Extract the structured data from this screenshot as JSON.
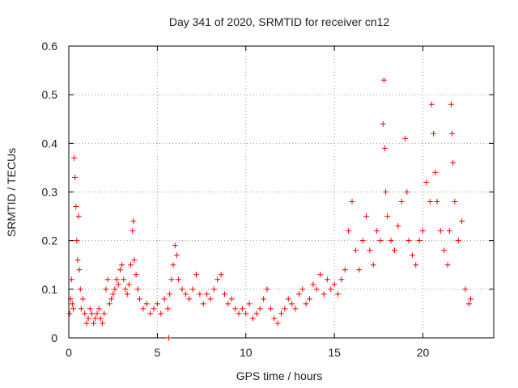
{
  "chart_data": {
    "type": "scatter",
    "title": "Day 341 of 2020, SRMTID for receiver cn12",
    "xlabel": "GPS time / hours",
    "ylabel": "SRMTID / TECUs",
    "xlim": [
      0,
      24
    ],
    "ylim": [
      0,
      0.6
    ],
    "xticks": [
      0,
      5,
      10,
      15,
      20
    ],
    "yticks": [
      0,
      0.1,
      0.2,
      0.3,
      0.4,
      0.5,
      0.6
    ],
    "ytick_labels": [
      "0",
      "0.1",
      "0.2",
      "0.3",
      "0.4",
      "0.5",
      "0.6"
    ],
    "grid": true,
    "marker": "+",
    "color": "#ff0000",
    "points": [
      [
        0.05,
        0.05
      ],
      [
        0.1,
        0.08
      ],
      [
        0.15,
        0.12
      ],
      [
        0.2,
        0.07
      ],
      [
        0.25,
        0.06
      ],
      [
        0.3,
        0.37
      ],
      [
        0.35,
        0.33
      ],
      [
        0.4,
        0.27
      ],
      [
        0.45,
        0.2
      ],
      [
        0.5,
        0.16
      ],
      [
        0.55,
        0.25
      ],
      [
        0.6,
        0.14
      ],
      [
        0.65,
        0.1
      ],
      [
        0.7,
        0.06
      ],
      [
        0.8,
        0.08
      ],
      [
        0.9,
        0.05
      ],
      [
        1.0,
        0.03
      ],
      [
        1.1,
        0.04
      ],
      [
        1.2,
        0.06
      ],
      [
        1.3,
        0.05
      ],
      [
        1.4,
        0.03
      ],
      [
        1.5,
        0.04
      ],
      [
        1.6,
        0.05
      ],
      [
        1.7,
        0.06
      ],
      [
        1.8,
        0.04
      ],
      [
        1.9,
        0.03
      ],
      [
        2.0,
        0.05
      ],
      [
        2.1,
        0.1
      ],
      [
        2.2,
        0.12
      ],
      [
        2.3,
        0.07
      ],
      [
        2.4,
        0.08
      ],
      [
        2.5,
        0.09
      ],
      [
        2.6,
        0.1
      ],
      [
        2.7,
        0.12
      ],
      [
        2.8,
        0.11
      ],
      [
        2.9,
        0.14
      ],
      [
        3.0,
        0.15
      ],
      [
        3.1,
        0.12
      ],
      [
        3.2,
        0.1
      ],
      [
        3.3,
        0.09
      ],
      [
        3.4,
        0.11
      ],
      [
        3.5,
        0.15
      ],
      [
        3.6,
        0.22
      ],
      [
        3.65,
        0.24
      ],
      [
        3.7,
        0.16
      ],
      [
        3.8,
        0.13
      ],
      [
        3.9,
        0.1
      ],
      [
        4.0,
        0.08
      ],
      [
        4.2,
        0.06
      ],
      [
        4.4,
        0.07
      ],
      [
        4.6,
        0.05
      ],
      [
        4.8,
        0.06
      ],
      [
        5.0,
        0.07
      ],
      [
        5.2,
        0.05
      ],
      [
        5.4,
        0.08
      ],
      [
        5.6,
        0.06
      ],
      [
        5.65,
        0.0
      ],
      [
        5.7,
        0.09
      ],
      [
        5.8,
        0.12
      ],
      [
        5.9,
        0.15
      ],
      [
        6.0,
        0.19
      ],
      [
        6.1,
        0.17
      ],
      [
        6.2,
        0.12
      ],
      [
        6.4,
        0.1
      ],
      [
        6.6,
        0.09
      ],
      [
        6.8,
        0.08
      ],
      [
        7.0,
        0.1
      ],
      [
        7.2,
        0.13
      ],
      [
        7.4,
        0.09
      ],
      [
        7.6,
        0.07
      ],
      [
        7.8,
        0.09
      ],
      [
        8.0,
        0.08
      ],
      [
        8.2,
        0.1
      ],
      [
        8.4,
        0.12
      ],
      [
        8.6,
        0.13
      ],
      [
        8.8,
        0.09
      ],
      [
        9.0,
        0.07
      ],
      [
        9.2,
        0.08
      ],
      [
        9.4,
        0.06
      ],
      [
        9.6,
        0.05
      ],
      [
        9.8,
        0.06
      ],
      [
        10.0,
        0.05
      ],
      [
        10.2,
        0.07
      ],
      [
        10.4,
        0.04
      ],
      [
        10.6,
        0.05
      ],
      [
        10.8,
        0.06
      ],
      [
        11.0,
        0.08
      ],
      [
        11.2,
        0.1
      ],
      [
        11.4,
        0.06
      ],
      [
        11.6,
        0.04
      ],
      [
        11.8,
        0.03
      ],
      [
        12.0,
        0.05
      ],
      [
        12.2,
        0.06
      ],
      [
        12.4,
        0.08
      ],
      [
        12.6,
        0.07
      ],
      [
        12.8,
        0.06
      ],
      [
        13.0,
        0.09
      ],
      [
        13.2,
        0.1
      ],
      [
        13.4,
        0.07
      ],
      [
        13.6,
        0.08
      ],
      [
        13.8,
        0.11
      ],
      [
        14.0,
        0.1
      ],
      [
        14.2,
        0.13
      ],
      [
        14.4,
        0.09
      ],
      [
        14.6,
        0.12
      ],
      [
        14.8,
        0.1
      ],
      [
        15.0,
        0.11
      ],
      [
        15.2,
        0.09
      ],
      [
        15.4,
        0.12
      ],
      [
        15.6,
        0.14
      ],
      [
        15.8,
        0.22
      ],
      [
        16.0,
        0.28
      ],
      [
        16.2,
        0.18
      ],
      [
        16.4,
        0.14
      ],
      [
        16.6,
        0.2
      ],
      [
        16.8,
        0.25
      ],
      [
        17.0,
        0.18
      ],
      [
        17.2,
        0.15
      ],
      [
        17.4,
        0.22
      ],
      [
        17.6,
        0.2
      ],
      [
        17.75,
        0.44
      ],
      [
        17.8,
        0.53
      ],
      [
        17.85,
        0.39
      ],
      [
        17.9,
        0.3
      ],
      [
        18.0,
        0.25
      ],
      [
        18.2,
        0.2
      ],
      [
        18.4,
        0.18
      ],
      [
        18.6,
        0.23
      ],
      [
        18.8,
        0.28
      ],
      [
        19.0,
        0.41
      ],
      [
        19.1,
        0.3
      ],
      [
        19.2,
        0.2
      ],
      [
        19.4,
        0.17
      ],
      [
        19.6,
        0.15
      ],
      [
        19.8,
        0.2
      ],
      [
        20.0,
        0.22
      ],
      [
        20.2,
        0.32
      ],
      [
        20.4,
        0.28
      ],
      [
        20.5,
        0.48
      ],
      [
        20.6,
        0.42
      ],
      [
        20.7,
        0.34
      ],
      [
        20.8,
        0.28
      ],
      [
        21.0,
        0.22
      ],
      [
        21.2,
        0.18
      ],
      [
        21.4,
        0.15
      ],
      [
        21.5,
        0.22
      ],
      [
        21.6,
        0.48
      ],
      [
        21.65,
        0.42
      ],
      [
        21.7,
        0.36
      ],
      [
        21.8,
        0.28
      ],
      [
        22.0,
        0.2
      ],
      [
        22.2,
        0.24
      ],
      [
        22.4,
        0.1
      ],
      [
        22.6,
        0.07
      ],
      [
        22.7,
        0.08
      ]
    ]
  }
}
